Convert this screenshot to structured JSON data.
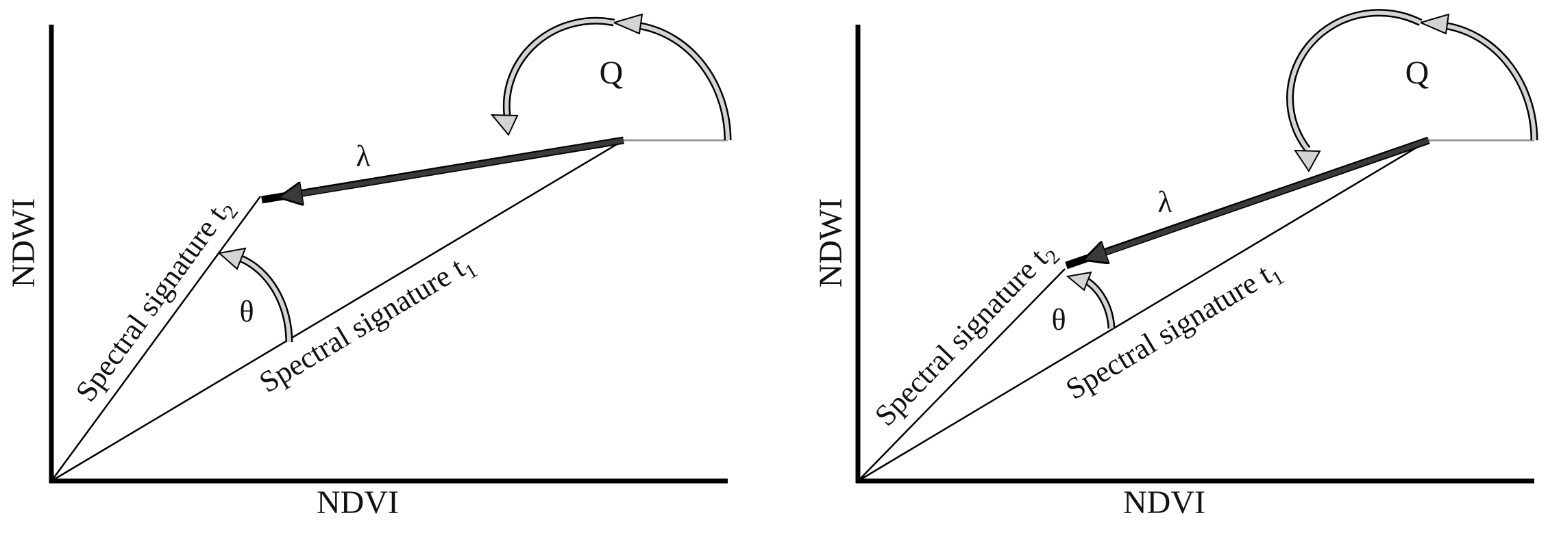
{
  "panels": [
    {
      "x_axis_label": "NDVI",
      "y_axis_label": "NDWI",
      "vector_t1_label": "Spectral signature t",
      "vector_t1_subscript": "1",
      "vector_t2_label": "Spectral signature t",
      "vector_t2_subscript": "2",
      "angle_symbol": "θ",
      "change_magnitude_symbol": "λ",
      "change_direction_symbol": "Q"
    },
    {
      "x_axis_label": "NDVI",
      "y_axis_label": "NDWI",
      "vector_t1_label": "Spectral signature t",
      "vector_t1_subscript": "1",
      "vector_t2_label": "Spectral signature t",
      "vector_t2_subscript": "2",
      "angle_symbol": "θ",
      "change_magnitude_symbol": "λ",
      "change_direction_symbol": "Q"
    }
  ],
  "colors": {
    "axis": "#000000",
    "vector_line": "#000000",
    "change_vector": "#3a3a3a",
    "reference_line": "#9a9a9a",
    "arc_arrow_fill": "#d4d4d4"
  }
}
